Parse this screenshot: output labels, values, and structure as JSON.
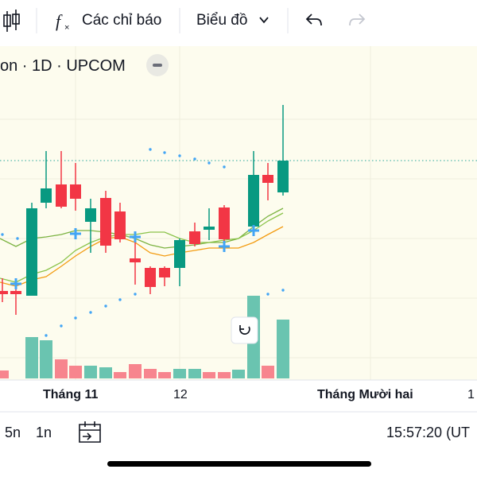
{
  "toolbar": {
    "indicators": "Các chỉ báo",
    "chart_type": "Biểu đồ"
  },
  "chart_header": {
    "symbol": "on · 1D · UPCOM"
  },
  "x_axis": {
    "labels": [
      "Tháng 11",
      "12",
      "Tháng Mười hai",
      "1"
    ]
  },
  "bottom_bar": {
    "ranges": [
      "5n",
      "1n"
    ],
    "clock": "15:57:20 (UT"
  }
}
